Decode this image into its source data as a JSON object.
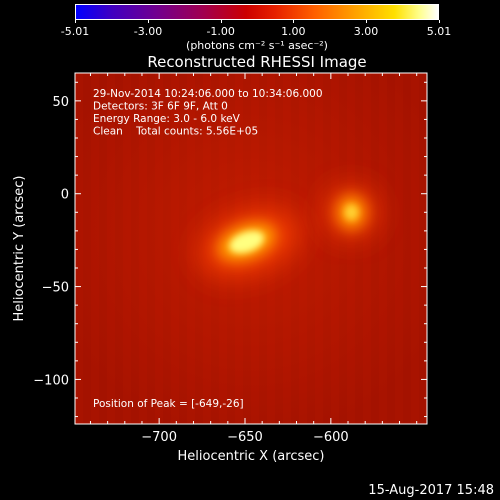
{
  "colorbar": {
    "tick_labels": [
      "-5.01",
      "-3.00",
      "-1.00",
      "1.00",
      "3.00",
      "5.01"
    ],
    "tick_values": [
      -5.01,
      -3.0,
      -1.0,
      1.0,
      3.0,
      5.01
    ],
    "range": [
      -5.01,
      5.01
    ],
    "units": "(photons cm⁻² s⁻¹ asec⁻²)",
    "colors": [
      "#0000ff",
      "#ff0000",
      "#ffff66",
      "#ffffff"
    ]
  },
  "chart_data": {
    "type": "heatmap",
    "title": "Reconstructed RHESSI Image",
    "xlabel": "Heliocentric X (arcsec)",
    "ylabel": "Heliocentric Y (arcsec)",
    "xlim": [
      -749,
      -544
    ],
    "ylim": [
      -124,
      65
    ],
    "xticks": [
      -700,
      -650,
      -600
    ],
    "xtick_labels": [
      "−700",
      "−650",
      "−600"
    ],
    "yticks": [
      0,
      -50,
      -100
    ],
    "ytick_labels": [
      "0",
      "−50",
      "−100"
    ],
    "sources": [
      {
        "x": -649,
        "y": -26,
        "intensity": 1.0
      },
      {
        "x": -588,
        "y": -10,
        "intensity": 0.62
      }
    ],
    "annotations": [
      "29-Nov-2014 10:24:06.000 to 10:34:06.000",
      "Detectors: 3F 6F 9F, Att 0",
      "Energy Range: 3.0 - 6.0 keV",
      "Clean    Total counts: 5.56E+05"
    ],
    "peak_label": "Position of Peak = [-649,-26]",
    "grid": false
  },
  "footer": {
    "date": "15-Aug-2017 15:48"
  }
}
